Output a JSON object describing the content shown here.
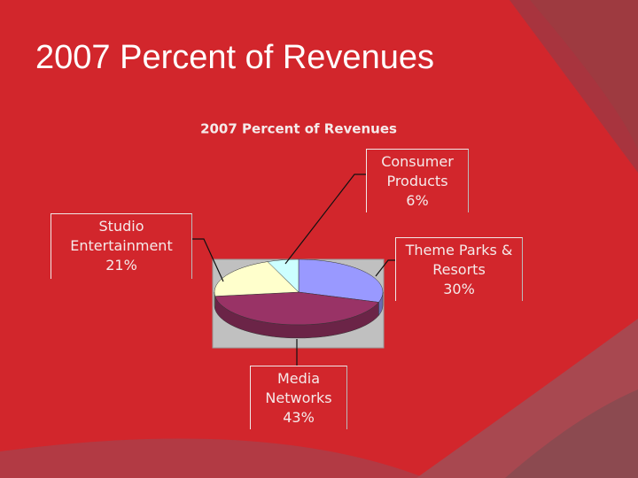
{
  "slide_title": "2007 Percent of Revenues",
  "chart_data": {
    "type": "pie",
    "title": "2007 Percent of Revenues",
    "categories": [
      "Theme Parks & Resorts",
      "Media Networks",
      "Studio Entertainment",
      "Consumer Products"
    ],
    "values": [
      30,
      43,
      21,
      6
    ],
    "value_labels": [
      "30%",
      "43%",
      "21%",
      "6%"
    ],
    "colors": [
      "#9999ff",
      "#993366",
      "#ffffcc",
      "#ccffff"
    ]
  }
}
